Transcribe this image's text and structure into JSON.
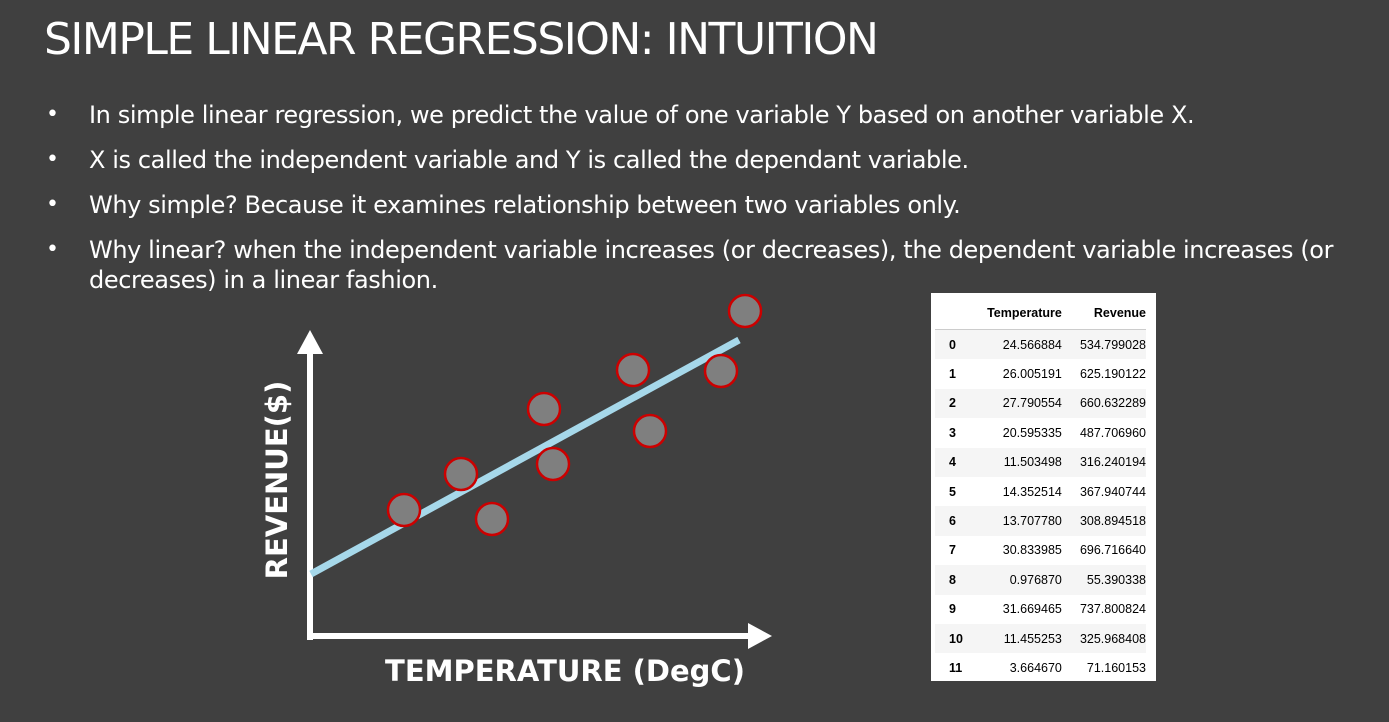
{
  "slide": {
    "title": "SIMPLE LINEAR REGRESSION: INTUITION",
    "bullets": [
      "In simple linear regression, we predict the value of one variable Y based on another variable X.",
      "X is called the independent variable and Y is called the dependant variable.",
      "Why simple? Because it examines relationship between two variables only.",
      "Why linear? when the independent variable increases (or decreases), the dependent variable increases (or decreases) in a linear fashion."
    ],
    "bullet_glyph": "•"
  },
  "diagram": {
    "x_label": "TEMPERATURE (DegC)",
    "y_label": "REVENUE($)",
    "colors": {
      "axis": "#ffffff",
      "line": "#a6d8ea",
      "point_fill": "#7f7f7f",
      "point_stroke": "#cc0000"
    }
  },
  "table": {
    "columns": [
      "",
      "Temperature",
      "Revenue"
    ],
    "rows": [
      [
        "0",
        "24.566884",
        "534.799028"
      ],
      [
        "1",
        "26.005191",
        "625.190122"
      ],
      [
        "2",
        "27.790554",
        "660.632289"
      ],
      [
        "3",
        "20.595335",
        "487.706960"
      ],
      [
        "4",
        "11.503498",
        "316.240194"
      ],
      [
        "5",
        "14.352514",
        "367.940744"
      ],
      [
        "6",
        "13.707780",
        "308.894518"
      ],
      [
        "7",
        "30.833985",
        "696.716640"
      ],
      [
        "8",
        "0.976870",
        "55.390338"
      ],
      [
        "9",
        "31.669465",
        "737.800824"
      ],
      [
        "10",
        "11.455253",
        "325.968408"
      ],
      [
        "11",
        "3.664670",
        "71.160153"
      ]
    ]
  }
}
